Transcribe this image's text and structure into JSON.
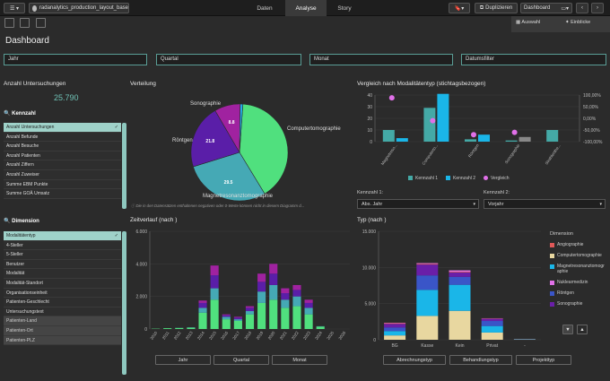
{
  "topbar": {
    "file_name": "radanalytics_production_layout_base",
    "tabs": [
      "Daten",
      "Analyse",
      "Story"
    ],
    "active_tab": "Analyse",
    "duplicate_label": "Duplizieren",
    "dashboard_label": "Dashboard"
  },
  "right_tabs": {
    "auswahl": "Auswahl",
    "einblicke": "Einblicke"
  },
  "page_title": "Dashboard",
  "filters": [
    "Jahr",
    "Quartal",
    "Monat",
    "Datumsfilter"
  ],
  "kpi": {
    "title": "Anzahl Untersuchungen",
    "value": "25.790"
  },
  "kennzahl_list": {
    "label": "Kennzahl",
    "items": [
      "Anzahl Untersuchungen",
      "Anzahl Befunde",
      "Anzahl Besuche",
      "Anzahl Patienten",
      "Anzahl Ziffern",
      "Anzahl Zuweiser",
      "Summe EBM Punkte",
      "Summe GOÄ Umsatz"
    ]
  },
  "dimension_list": {
    "label": "Dimension",
    "items": [
      "Modalitätentyp",
      "4-Steller",
      "5-Steller",
      "Benutzer",
      "Modalität",
      "Modalität-Standort",
      "Organisationseinheit",
      "Patienten-Geschlecht",
      "Untersuchungstext",
      "Patienten-Land",
      "Patienten-Ort",
      "Patienten-PLZ"
    ]
  },
  "pie": {
    "title": "Verteilung",
    "footnote": "Die in den Datensätzen enthaltenen negativen oder 0-Werte können nicht in diesem Diagramm d...",
    "slices": [
      {
        "label": "Computertomographie",
        "value": 41,
        "color": "#50e07e"
      },
      {
        "label": "Magnetresonanztomographie",
        "value": 29.5,
        "color": "#45a9b5",
        "pct": "29.5"
      },
      {
        "label": "Röntgen",
        "value": 21.8,
        "color": "#5a1ea8",
        "pct": "21.8"
      },
      {
        "label": "Sonographie",
        "value": 8.8,
        "color": "#a022a0",
        "pct": "8.8"
      },
      {
        "label": "",
        "value": 0.9,
        "color": "#1fb0e8",
        "pct": ""
      }
    ]
  },
  "compare": {
    "title": "Vergleich nach Modalitätentyp (stichtagsbezogen)",
    "yticks_left": [
      "40",
      "30",
      "20",
      "10",
      "0"
    ],
    "yticks_right": [
      "100,00%",
      "50,00%",
      "0,00%",
      "-50,00%",
      "-100,00%"
    ],
    "categories": [
      "Magnetreso...",
      "Computerto...",
      "Röntgen",
      "Sonographie",
      "Strahlenthe..."
    ],
    "k1": [
      10,
      29,
      2,
      1,
      10
    ],
    "k2": [
      3,
      41,
      6,
      4,
      0
    ],
    "vergleich": [
      88,
      -10,
      -70,
      -60,
      null
    ],
    "legend": [
      "Kennzahl 1",
      "Kennzahl 2",
      "Vergleich"
    ],
    "colors": {
      "k1": "#44a9a6",
      "k2": "#1ab6e8",
      "vergleich": "#e070e8"
    },
    "kennzahl1_label": "Kennzahl 1:",
    "kennzahl1_value": "Abs. Jahr",
    "kennzahl2_label": "Kennzahl 2:",
    "kennzahl2_value": "Vorjahr"
  },
  "zeitverlauf": {
    "title": "Zeitverlauf (nach )",
    "yticks": [
      "6.000",
      "4.000",
      "2.000",
      "0"
    ],
    "ymax": 6000,
    "years": [
      "2010",
      "2011",
      "2012",
      "2013",
      "2014",
      "2015",
      "2016",
      "2017",
      "2018",
      "2019",
      "2020",
      "2021",
      "2022",
      "2023",
      "2024",
      "2025",
      "2026"
    ],
    "series": [
      {
        "name": "Computertomographie",
        "color": "#50e07e",
        "values": [
          20,
          50,
          60,
          80,
          1000,
          1800,
          600,
          500,
          900,
          1600,
          1800,
          1300,
          1400,
          900,
          150,
          0,
          0
        ]
      },
      {
        "name": "Magnetresonanztomographie",
        "color": "#45a9b5",
        "values": [
          0,
          0,
          10,
          20,
          300,
          700,
          150,
          100,
          200,
          700,
          900,
          500,
          600,
          400,
          20,
          0,
          0
        ]
      },
      {
        "name": "Röntgen",
        "color": "#5a1ea8",
        "values": [
          0,
          0,
          0,
          0,
          300,
          800,
          100,
          100,
          200,
          600,
          700,
          400,
          400,
          300,
          0,
          0,
          0
        ]
      },
      {
        "name": "Sonographie",
        "color": "#a022a0",
        "values": [
          0,
          0,
          0,
          0,
          150,
          600,
          50,
          50,
          100,
          500,
          600,
          300,
          300,
          200,
          0,
          0,
          0
        ]
      }
    ],
    "buttons": [
      "Jahr",
      "Quartal",
      "Monat"
    ]
  },
  "typ": {
    "title": "Typ (nach )",
    "yticks": [
      "15.000",
      "10.000",
      "5.000",
      "0"
    ],
    "ymax": 15000,
    "categories": [
      "BG",
      "Kasse",
      "Kein",
      "Privat",
      "-"
    ],
    "series": [
      {
        "name": "Computertomographie",
        "color": "#e8d7a0",
        "values": [
          600,
          3300,
          4000,
          1000,
          50
        ]
      },
      {
        "name": "Magnetresonanztomographie",
        "color": "#1ab6e8",
        "values": [
          600,
          3600,
          3600,
          900,
          40
        ]
      },
      {
        "name": "Röntgen",
        "color": "#3a55c8",
        "values": [
          500,
          2000,
          1100,
          700,
          20
        ]
      },
      {
        "name": "Sonographie",
        "color": "#6a1ea8",
        "values": [
          500,
          1500,
          600,
          300,
          10
        ]
      },
      {
        "name": "Angiographie",
        "color": "#e05858",
        "values": [
          100,
          100,
          100,
          50,
          0
        ]
      },
      {
        "name": "Nuklearmedizin",
        "color": "#e070e8",
        "values": [
          50,
          100,
          200,
          30,
          0
        ]
      }
    ],
    "legend_title": "Dimension",
    "legend": [
      "Angiographie",
      "Computertomographie",
      "Magnetresonanztomographie",
      "Nuklearmedizin",
      "Röntgen",
      "Sonographie"
    ],
    "legend_colors": [
      "#e05858",
      "#e8d7a0",
      "#1ab6e8",
      "#e070e8",
      "#3a55c8",
      "#6a1ea8"
    ],
    "buttons": [
      "Abrechnungstyp",
      "Behandlungstyp",
      "Projekttyp"
    ]
  }
}
